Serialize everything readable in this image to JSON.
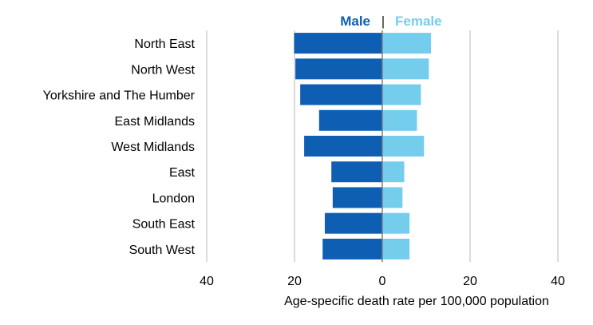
{
  "chart_data": {
    "type": "bar",
    "orientation": "horizontal",
    "layout": "population-pyramid",
    "title": "",
    "categories": [
      "North East",
      "North West",
      "Yorkshire and The Humber",
      "East Midlands",
      "West Midlands",
      "East",
      "London",
      "South East",
      "South West"
    ],
    "series": [
      {
        "name": "Male",
        "color": "#0e5fb4",
        "side": "left",
        "values": [
          20.1,
          19.8,
          18.7,
          14.4,
          17.8,
          11.6,
          11.3,
          13.1,
          13.6
        ]
      },
      {
        "name": "Female",
        "color": "#75cdee",
        "side": "right",
        "values": [
          11.1,
          10.6,
          8.8,
          7.9,
          9.5,
          5.0,
          4.6,
          6.2,
          6.2
        ]
      }
    ],
    "legend": {
      "separator": "|",
      "placement": "top-center"
    },
    "xlabel": "Age-specific death rate per 100,000 population",
    "ylabel": "",
    "xlim": [
      -40,
      40
    ],
    "xticks": [
      -40,
      -20,
      0,
      20,
      40
    ],
    "xtick_labels": [
      "40",
      "20",
      "0",
      "20",
      "40"
    ],
    "grid": true,
    "colors": {
      "gridline": "#d0d0d0",
      "axis": "#7f7f7f"
    }
  }
}
